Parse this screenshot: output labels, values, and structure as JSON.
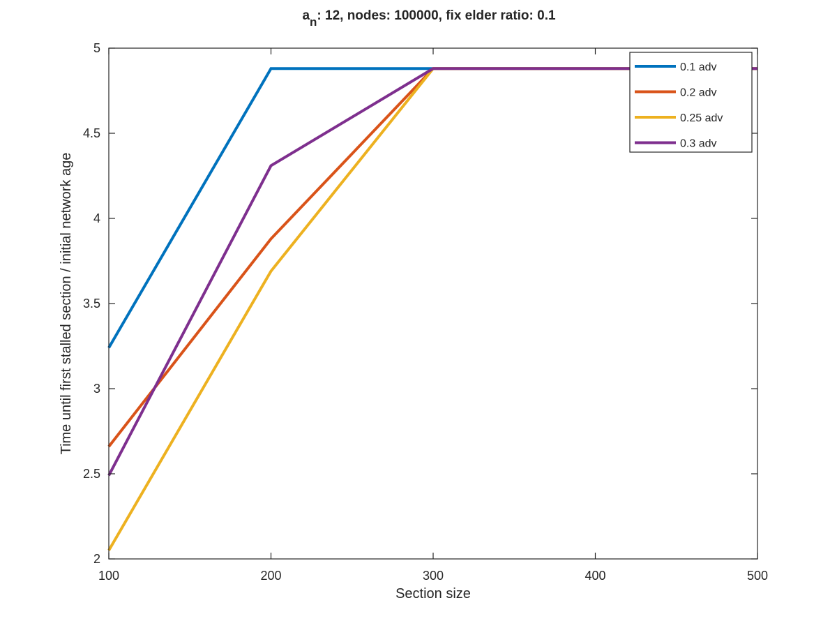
{
  "chart_data": {
    "type": "line",
    "title": {
      "base": "a",
      "subscript": "n",
      "rest": ": 12, nodes: 100000, fix elder ratio: 0.1"
    },
    "xlabel": "Section size",
    "ylabel": "Time until first stalled section / initial network age",
    "xlim": [
      100,
      500
    ],
    "ylim": [
      2,
      5
    ],
    "xticks": [
      100,
      200,
      300,
      400,
      500
    ],
    "xtick_labels": [
      "100",
      "200",
      "300",
      "400",
      "500"
    ],
    "yticks": [
      2,
      2.5,
      3,
      3.5,
      4,
      4.5,
      5
    ],
    "ytick_labels": [
      "2",
      "2.5",
      "3",
      "3.5",
      "4",
      "4.5",
      "5"
    ],
    "grid": false,
    "box": true,
    "legend_position": "top-right",
    "x": [
      100,
      200,
      300,
      400,
      500
    ],
    "series": [
      {
        "name": "0.1 adv",
        "color": "#0072BD",
        "values": [
          3.24,
          4.88,
          4.88,
          4.88,
          4.88
        ]
      },
      {
        "name": "0.2 adv",
        "color": "#D95319",
        "values": [
          2.66,
          3.88,
          4.88,
          4.88,
          4.88
        ]
      },
      {
        "name": "0.25 adv",
        "color": "#EDB120",
        "values": [
          2.05,
          3.69,
          4.88,
          4.88,
          4.88
        ]
      },
      {
        "name": "0.3 adv",
        "color": "#7E2F8E",
        "values": [
          2.49,
          4.31,
          4.88,
          4.88,
          4.88
        ]
      }
    ]
  }
}
